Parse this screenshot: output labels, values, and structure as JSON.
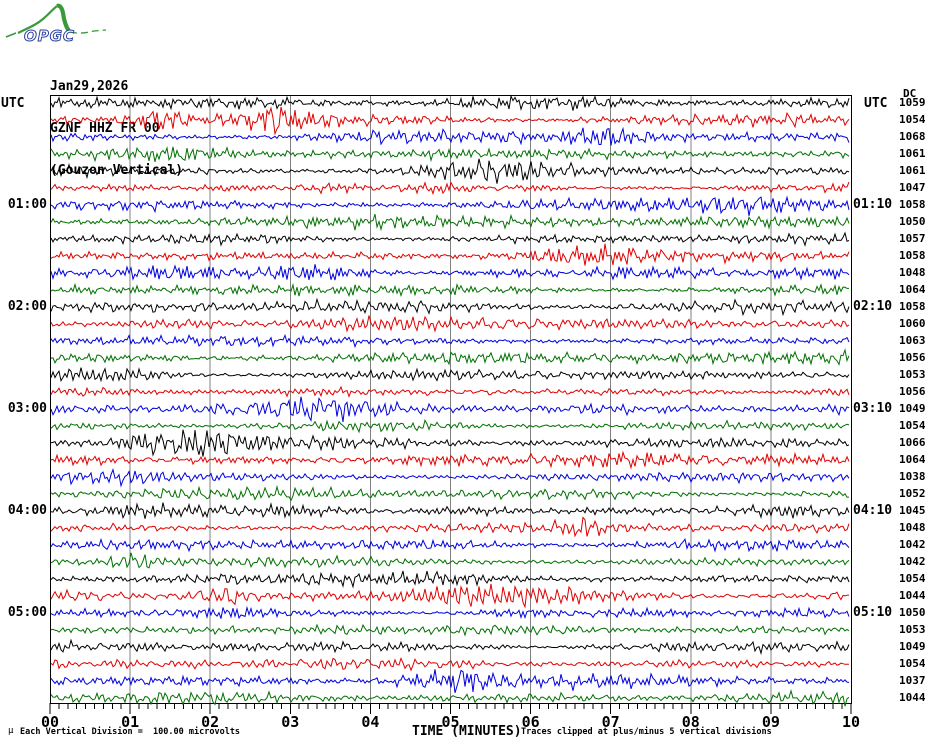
{
  "logo": {
    "text": "OPGC"
  },
  "header": {
    "date": "Jan29,2026",
    "station": "GZNF HHZ FR 00",
    "station_name": "(Gouzon Vertical)"
  },
  "axes": {
    "utc_left": "UTC",
    "utc_right": "UTC",
    "dc_header": "DC"
  },
  "x_axis": {
    "label": "TIME (MINUTES)",
    "tick_labels": [
      "00",
      "01",
      "02",
      "03",
      "04",
      "05",
      "06",
      "07",
      "08",
      "09",
      "10"
    ]
  },
  "hour_labels": [
    {
      "row": 7,
      "left": "01:00",
      "right": "01:10"
    },
    {
      "row": 13,
      "left": "02:00",
      "right": "02:10"
    },
    {
      "row": 19,
      "left": "03:00",
      "right": "03:10"
    },
    {
      "row": 25,
      "left": "04:00",
      "right": "04:10"
    },
    {
      "row": 31,
      "left": "05:00",
      "right": "05:10"
    }
  ],
  "footer": {
    "mu": "μ",
    "scale_note": "Each Vertical Division =  100.00 microvolts",
    "clip_note": "Traces clipped at plus/minus 5 vertical divisions"
  },
  "colors": {
    "black": "#000000",
    "red": "#e00000",
    "blue": "#0000dd",
    "green": "#007000",
    "grid": "#808080",
    "frame": "#000000",
    "logo_green": "#3a9a3a",
    "logo_blue": "#2b3f9e"
  },
  "chart_data": {
    "type": "line",
    "subtype": "helicorder-seismogram",
    "title": "GZNF HHZ FR 00 (Gouzon Vertical) — Jan29,2026",
    "xlabel": "TIME (MINUTES)",
    "x_range_minutes": [
      0,
      10
    ],
    "minutes_per_row": 10,
    "rows_utc_start": "00:00",
    "rows_utc_end": "05:50",
    "row_color_cycle": [
      "black",
      "red",
      "blue",
      "green"
    ],
    "division_microvolts": 100.0,
    "clip_divisions": 5,
    "dc_column_header": "DC",
    "rows": [
      {
        "utc": "00:00",
        "dc": 1059,
        "color": "black"
      },
      {
        "utc": "00:10",
        "dc": 1054,
        "color": "red"
      },
      {
        "utc": "00:20",
        "dc": 1068,
        "color": "blue"
      },
      {
        "utc": "00:30",
        "dc": 1061,
        "color": "green"
      },
      {
        "utc": "00:40",
        "dc": 1061,
        "color": "black"
      },
      {
        "utc": "00:50",
        "dc": 1047,
        "color": "red"
      },
      {
        "utc": "01:00",
        "dc": 1058,
        "color": "blue"
      },
      {
        "utc": "01:10",
        "dc": 1050,
        "color": "green"
      },
      {
        "utc": "01:20",
        "dc": 1057,
        "color": "black"
      },
      {
        "utc": "01:30",
        "dc": 1058,
        "color": "red"
      },
      {
        "utc": "01:40",
        "dc": 1048,
        "color": "blue"
      },
      {
        "utc": "01:50",
        "dc": 1064,
        "color": "green"
      },
      {
        "utc": "02:00",
        "dc": 1058,
        "color": "black"
      },
      {
        "utc": "02:10",
        "dc": 1060,
        "color": "red"
      },
      {
        "utc": "02:20",
        "dc": 1063,
        "color": "blue"
      },
      {
        "utc": "02:30",
        "dc": 1056,
        "color": "green"
      },
      {
        "utc": "02:40",
        "dc": 1053,
        "color": "black"
      },
      {
        "utc": "02:50",
        "dc": 1056,
        "color": "red"
      },
      {
        "utc": "03:00",
        "dc": 1049,
        "color": "blue"
      },
      {
        "utc": "03:10",
        "dc": 1054,
        "color": "green"
      },
      {
        "utc": "03:20",
        "dc": 1066,
        "color": "black"
      },
      {
        "utc": "03:30",
        "dc": 1064,
        "color": "red"
      },
      {
        "utc": "03:40",
        "dc": 1038,
        "color": "blue"
      },
      {
        "utc": "03:50",
        "dc": 1052,
        "color": "green"
      },
      {
        "utc": "04:00",
        "dc": 1045,
        "color": "black"
      },
      {
        "utc": "04:10",
        "dc": 1048,
        "color": "red"
      },
      {
        "utc": "04:20",
        "dc": 1042,
        "color": "blue"
      },
      {
        "utc": "04:30",
        "dc": 1042,
        "color": "green"
      },
      {
        "utc": "04:40",
        "dc": 1054,
        "color": "black"
      },
      {
        "utc": "04:50",
        "dc": 1044,
        "color": "red"
      },
      {
        "utc": "05:00",
        "dc": 1050,
        "color": "blue"
      },
      {
        "utc": "05:10",
        "dc": 1053,
        "color": "green"
      },
      {
        "utc": "05:20",
        "dc": 1049,
        "color": "black"
      },
      {
        "utc": "05:30",
        "dc": 1054,
        "color": "red"
      },
      {
        "utc": "05:40",
        "dc": 1037,
        "color": "blue"
      },
      {
        "utc": "05:50",
        "dc": 1044,
        "color": "green"
      }
    ]
  }
}
